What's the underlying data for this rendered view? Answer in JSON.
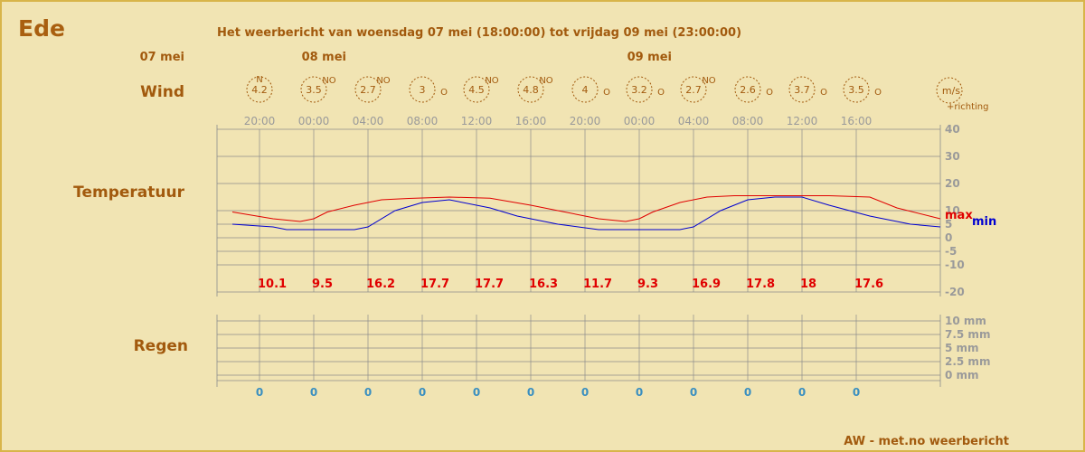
{
  "location": "Ede",
  "header": "Het weerbericht van woensdag 07 mei (18:00:00) tot vrijdag 09 mei (23:00:00)",
  "credit": "AW - met.no weerbericht",
  "sections": {
    "wind": "Wind",
    "temperature": "Temperatuur",
    "rain": "Regen"
  },
  "wind_legend": {
    "unit": "m/s",
    "direction_note": "+richting"
  },
  "temp_legend": {
    "max": "max",
    "min": "min"
  },
  "colors": {
    "background": "#f1e4b3",
    "border": "#d8b54a",
    "max_line": "#e00000",
    "min_line": "#0000d0",
    "rain_value": "#3a8fc0",
    "grid": "#8c8c8c"
  },
  "chart_data": {
    "type": "line",
    "time_ticks": [
      "20:00",
      "00:00",
      "04:00",
      "08:00",
      "12:00",
      "16:00",
      "20:00",
      "00:00",
      "04:00",
      "08:00",
      "12:00",
      "16:00"
    ],
    "date_labels": [
      {
        "label": "07 mei",
        "at_hour": -1
      },
      {
        "label": "08 mei",
        "at_hour": 6
      },
      {
        "label": "09 mei",
        "at_hour": 30
      }
    ],
    "hours_span": [
      0,
      53
    ],
    "wind": [
      {
        "hour": 2,
        "speed": "4.2",
        "dir": "N"
      },
      {
        "hour": 6,
        "speed": "3.5",
        "dir": "NO"
      },
      {
        "hour": 10,
        "speed": "2.7",
        "dir": "NO"
      },
      {
        "hour": 14,
        "speed": "3",
        "dir": "O"
      },
      {
        "hour": 18,
        "speed": "4.5",
        "dir": "NO"
      },
      {
        "hour": 22,
        "speed": "4.8",
        "dir": "NO"
      },
      {
        "hour": 26,
        "speed": "4",
        "dir": "O"
      },
      {
        "hour": 30,
        "speed": "3.2",
        "dir": "O"
      },
      {
        "hour": 34,
        "speed": "2.7",
        "dir": "NO"
      },
      {
        "hour": 38,
        "speed": "2.6",
        "dir": "O"
      },
      {
        "hour": 42,
        "speed": "3.7",
        "dir": "O"
      },
      {
        "hour": 46,
        "speed": "3.5",
        "dir": "O"
      }
    ],
    "temperature": {
      "yticks": [
        40,
        30,
        20,
        10,
        5,
        0,
        -5,
        -10,
        -20
      ],
      "ylim": [
        -20,
        40
      ],
      "max_series": {
        "name": "max",
        "hours": [
          0,
          3,
          5,
          6,
          7,
          9,
          11,
          13,
          16,
          19,
          22,
          24,
          26,
          27,
          29,
          30,
          31,
          33,
          35,
          37,
          40,
          42,
          44,
          47,
          49,
          53
        ],
        "values": [
          9.5,
          7,
          6,
          7,
          9.5,
          12,
          14,
          14.5,
          15,
          14.6,
          12,
          10,
          8,
          7,
          6,
          7,
          9.5,
          13,
          15,
          15.5,
          15.5,
          15.5,
          15.5,
          15,
          11,
          7
        ]
      },
      "min_series": {
        "name": "min",
        "hours": [
          0,
          3,
          4,
          8,
          9,
          10,
          12,
          14,
          16,
          19,
          21,
          24,
          27,
          29,
          33,
          34,
          36,
          38,
          40,
          42,
          44,
          47,
          50,
          53
        ],
        "values": [
          5,
          4,
          3,
          3,
          3,
          4,
          10,
          13,
          14,
          11,
          8,
          5,
          3,
          3,
          3,
          4,
          10,
          14,
          15,
          15,
          12,
          8,
          5,
          4
        ]
      },
      "labels": [
        {
          "hour": 2,
          "value": "10.1"
        },
        {
          "hour": 6,
          "value": "9.5"
        },
        {
          "hour": 10,
          "value": "16.2"
        },
        {
          "hour": 14,
          "value": "17.7"
        },
        {
          "hour": 18,
          "value": "17.7"
        },
        {
          "hour": 22,
          "value": "16.3"
        },
        {
          "hour": 26,
          "value": "11.7"
        },
        {
          "hour": 30,
          "value": "9.3"
        },
        {
          "hour": 34,
          "value": "16.9"
        },
        {
          "hour": 38,
          "value": "17.8"
        },
        {
          "hour": 42,
          "value": "18"
        },
        {
          "hour": 46,
          "value": "17.6"
        }
      ]
    },
    "rain": {
      "yticks": [
        "10 mm",
        "7.5 mm",
        "5 mm",
        "2.5 mm",
        "0 mm"
      ],
      "ylim": [
        0,
        10
      ],
      "values": [
        {
          "hour": 2,
          "value": "0"
        },
        {
          "hour": 6,
          "value": "0"
        },
        {
          "hour": 10,
          "value": "0"
        },
        {
          "hour": 14,
          "value": "0"
        },
        {
          "hour": 18,
          "value": "0"
        },
        {
          "hour": 22,
          "value": "0"
        },
        {
          "hour": 26,
          "value": "0"
        },
        {
          "hour": 30,
          "value": "0"
        },
        {
          "hour": 34,
          "value": "0"
        },
        {
          "hour": 38,
          "value": "0"
        },
        {
          "hour": 42,
          "value": "0"
        },
        {
          "hour": 46,
          "value": "0"
        }
      ]
    }
  }
}
